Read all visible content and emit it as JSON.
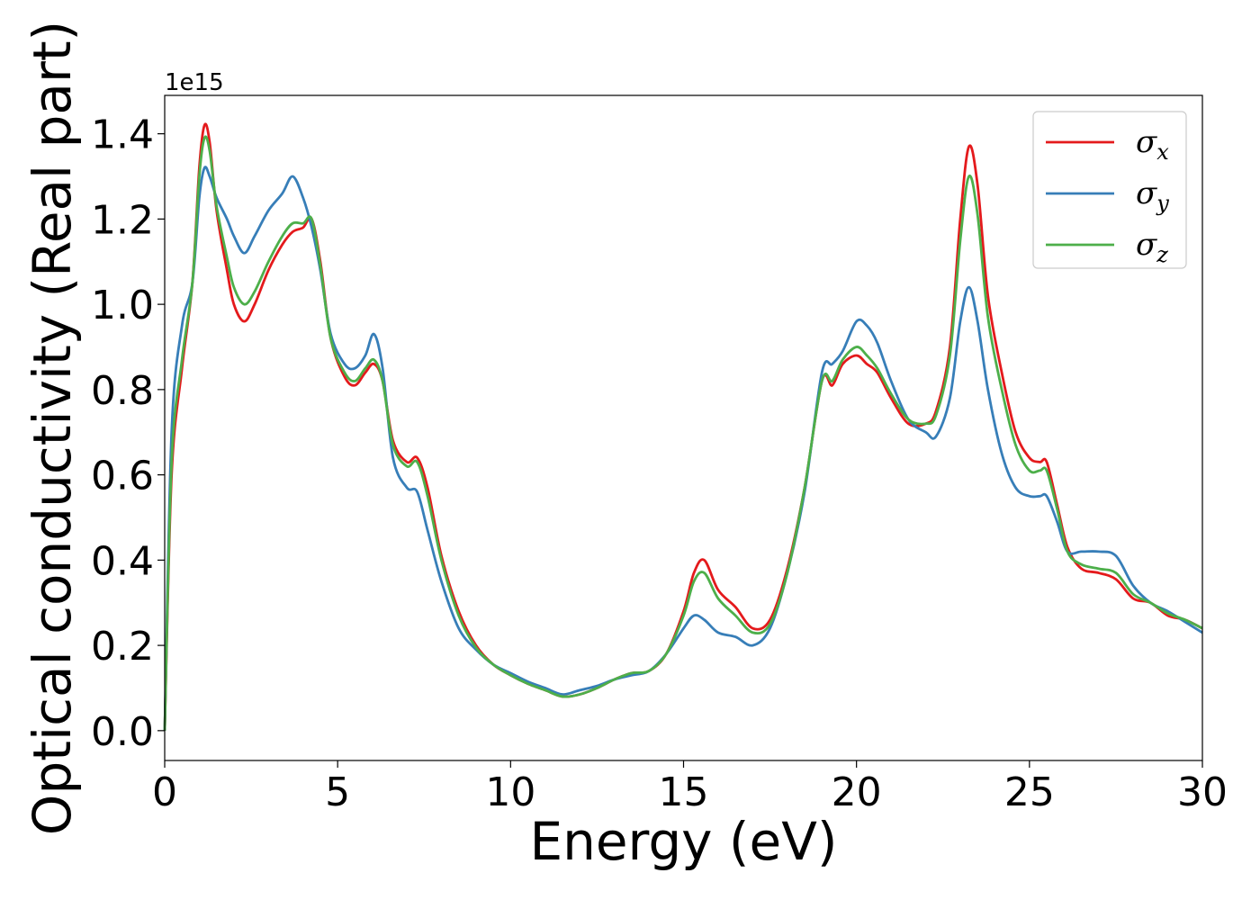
{
  "chart_data": {
    "type": "line",
    "xlabel": "Energy (eV)",
    "ylabel": "Optical conductivity (Real part)",
    "y_offset_label": "1e15",
    "xlim": [
      0,
      30
    ],
    "ylim": [
      -0.07,
      1.49
    ],
    "x_ticks": [
      0,
      5,
      10,
      15,
      20,
      25,
      30
    ],
    "x_tick_labels": [
      "0",
      "5",
      "10",
      "15",
      "20",
      "25",
      "30"
    ],
    "y_ticks": [
      0.0,
      0.2,
      0.4,
      0.6,
      0.8,
      1.0,
      1.2,
      1.4
    ],
    "y_tick_labels": [
      "0.0",
      "0.2",
      "0.4",
      "0.6",
      "0.8",
      "1.0",
      "1.2",
      "1.4"
    ],
    "grid": false,
    "legend_position": "top-right",
    "x": [
      0,
      0.2,
      0.5,
      0.8,
      1.0,
      1.15,
      1.3,
      1.5,
      1.8,
      2.0,
      2.3,
      2.6,
      3.0,
      3.4,
      3.7,
      4.0,
      4.25,
      4.5,
      4.8,
      5.2,
      5.5,
      5.8,
      6.05,
      6.3,
      6.6,
      7.0,
      7.3,
      7.6,
      8.0,
      8.5,
      9.0,
      9.5,
      10.0,
      10.5,
      11.0,
      11.5,
      12.0,
      12.5,
      13.0,
      13.5,
      14.0,
      14.5,
      15.0,
      15.3,
      15.6,
      16.0,
      16.5,
      17.0,
      17.5,
      18.0,
      18.5,
      19.0,
      19.3,
      19.6,
      20.0,
      20.3,
      20.6,
      21.0,
      21.5,
      22.0,
      22.3,
      22.7,
      23.0,
      23.25,
      23.5,
      23.8,
      24.2,
      24.6,
      25.0,
      25.3,
      25.5,
      25.8,
      26.1,
      26.5,
      27.0,
      27.5,
      28.0,
      28.5,
      29.0,
      29.5,
      30.0
    ],
    "series": [
      {
        "name": "σx",
        "label_main": "σ",
        "label_sub": "x",
        "color": "#e41a1c",
        "values": [
          0.0,
          0.6,
          0.85,
          1.05,
          1.32,
          1.42,
          1.38,
          1.22,
          1.08,
          1.0,
          0.96,
          1.0,
          1.08,
          1.14,
          1.17,
          1.18,
          1.2,
          1.1,
          0.92,
          0.83,
          0.81,
          0.84,
          0.86,
          0.82,
          0.68,
          0.63,
          0.64,
          0.57,
          0.41,
          0.28,
          0.2,
          0.155,
          0.13,
          0.11,
          0.095,
          0.08,
          0.085,
          0.1,
          0.12,
          0.135,
          0.14,
          0.18,
          0.28,
          0.37,
          0.4,
          0.33,
          0.29,
          0.24,
          0.26,
          0.38,
          0.57,
          0.82,
          0.81,
          0.86,
          0.88,
          0.86,
          0.84,
          0.78,
          0.72,
          0.72,
          0.75,
          0.9,
          1.2,
          1.37,
          1.28,
          1.02,
          0.84,
          0.7,
          0.64,
          0.63,
          0.63,
          0.53,
          0.43,
          0.38,
          0.37,
          0.355,
          0.31,
          0.3,
          0.27,
          0.26,
          0.24
        ]
      },
      {
        "name": "σy",
        "label_main": "σ",
        "label_sub": "y",
        "color": "#377eb8",
        "values": [
          0.0,
          0.7,
          0.95,
          1.05,
          1.25,
          1.32,
          1.3,
          1.25,
          1.2,
          1.16,
          1.12,
          1.16,
          1.22,
          1.26,
          1.3,
          1.25,
          1.18,
          1.08,
          0.93,
          0.86,
          0.85,
          0.88,
          0.93,
          0.85,
          0.64,
          0.57,
          0.56,
          0.47,
          0.35,
          0.24,
          0.19,
          0.155,
          0.135,
          0.115,
          0.1,
          0.085,
          0.095,
          0.105,
          0.12,
          0.13,
          0.14,
          0.18,
          0.24,
          0.27,
          0.26,
          0.23,
          0.22,
          0.2,
          0.24,
          0.37,
          0.56,
          0.84,
          0.86,
          0.89,
          0.96,
          0.95,
          0.91,
          0.82,
          0.73,
          0.7,
          0.69,
          0.78,
          0.96,
          1.04,
          0.96,
          0.8,
          0.65,
          0.57,
          0.55,
          0.55,
          0.55,
          0.49,
          0.42,
          0.42,
          0.42,
          0.41,
          0.34,
          0.3,
          0.28,
          0.255,
          0.23
        ]
      },
      {
        "name": "σz",
        "label_main": "σ",
        "label_sub": "z",
        "color": "#4daf4a",
        "values": [
          0.0,
          0.63,
          0.87,
          1.05,
          1.3,
          1.39,
          1.36,
          1.23,
          1.11,
          1.04,
          1.0,
          1.03,
          1.1,
          1.16,
          1.19,
          1.19,
          1.2,
          1.09,
          0.92,
          0.84,
          0.82,
          0.85,
          0.87,
          0.82,
          0.67,
          0.62,
          0.63,
          0.55,
          0.4,
          0.27,
          0.195,
          0.155,
          0.13,
          0.11,
          0.095,
          0.08,
          0.085,
          0.1,
          0.12,
          0.135,
          0.14,
          0.18,
          0.27,
          0.35,
          0.37,
          0.31,
          0.27,
          0.23,
          0.25,
          0.37,
          0.57,
          0.82,
          0.82,
          0.87,
          0.9,
          0.88,
          0.85,
          0.79,
          0.73,
          0.72,
          0.74,
          0.88,
          1.15,
          1.3,
          1.21,
          0.97,
          0.8,
          0.67,
          0.61,
          0.61,
          0.61,
          0.52,
          0.42,
          0.39,
          0.38,
          0.37,
          0.32,
          0.3,
          0.275,
          0.26,
          0.24
        ]
      }
    ]
  }
}
